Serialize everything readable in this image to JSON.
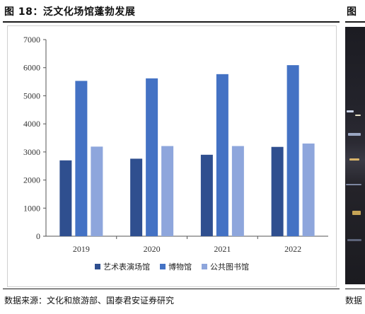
{
  "figure": {
    "title": "图 18：泛文化场馆蓬勃发展",
    "next_title_fragment": "图",
    "source": "数据来源：文化和旅游部、国泰君安证券研究",
    "next_source_fragment": "数据"
  },
  "chart_data": {
    "type": "bar",
    "categories": [
      "2019",
      "2020",
      "2021",
      "2022"
    ],
    "ylim": [
      0,
      7000
    ],
    "yticks": [
      0,
      1000,
      2000,
      3000,
      4000,
      5000,
      6000,
      7000
    ],
    "grid": false,
    "legend_position": "bottom",
    "series": [
      {
        "name": "艺术表演场馆",
        "color": "#2f4f8f",
        "values": [
          2700,
          2760,
          2900,
          3180
        ]
      },
      {
        "name": "博物馆",
        "color": "#4472c4",
        "values": [
          5530,
          5620,
          5770,
          6090
        ]
      },
      {
        "name": "公共图书馆",
        "color": "#8ea6dc",
        "values": [
          3190,
          3210,
          3210,
          3300
        ]
      }
    ]
  }
}
